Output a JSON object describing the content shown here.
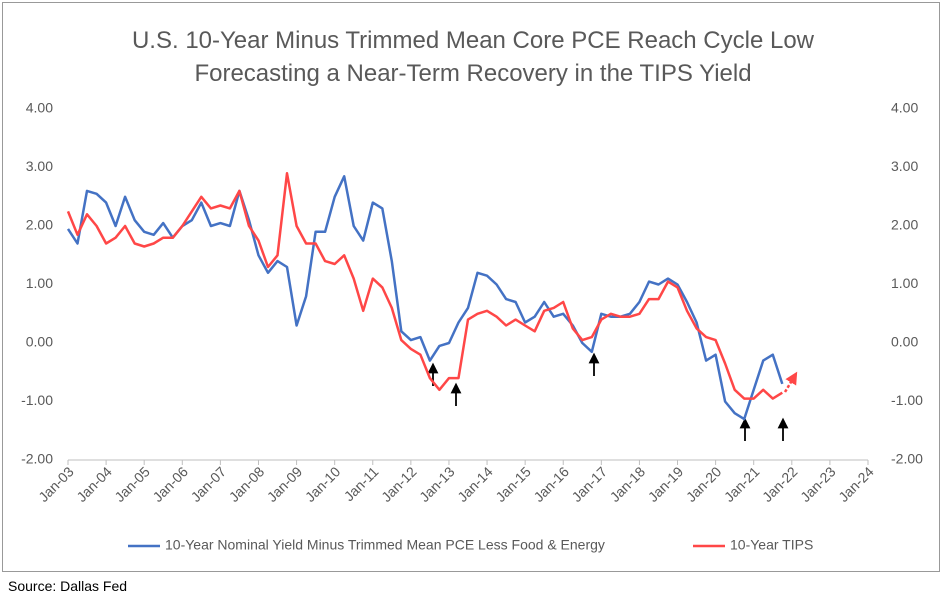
{
  "chart_data": {
    "type": "line",
    "title": "U.S. 10-Year Minus Trimmed Mean Core PCE Reach Cycle Low Forecasting a Near-Term Recovery in the TIPS Yield",
    "source": "Source: Dallas Fed",
    "x": [
      "2003-01",
      "2003-04",
      "2003-07",
      "2003-10",
      "2004-01",
      "2004-04",
      "2004-07",
      "2004-10",
      "2005-01",
      "2005-04",
      "2005-07",
      "2005-10",
      "2006-01",
      "2006-04",
      "2006-07",
      "2006-10",
      "2007-01",
      "2007-04",
      "2007-07",
      "2007-10",
      "2008-01",
      "2008-04",
      "2008-07",
      "2008-10",
      "2009-01",
      "2009-04",
      "2009-07",
      "2009-10",
      "2010-01",
      "2010-04",
      "2010-07",
      "2010-10",
      "2011-01",
      "2011-04",
      "2011-07",
      "2011-10",
      "2012-01",
      "2012-04",
      "2012-07",
      "2012-10",
      "2013-01",
      "2013-04",
      "2013-07",
      "2013-10",
      "2014-01",
      "2014-04",
      "2014-07",
      "2014-10",
      "2015-01",
      "2015-04",
      "2015-07",
      "2015-10",
      "2016-01",
      "2016-04",
      "2016-07",
      "2016-10",
      "2017-01",
      "2017-04",
      "2017-07",
      "2017-10",
      "2018-01",
      "2018-04",
      "2018-07",
      "2018-10",
      "2019-01",
      "2019-04",
      "2019-07",
      "2019-10",
      "2020-01",
      "2020-04",
      "2020-07",
      "2020-10",
      "2021-01",
      "2021-04",
      "2021-07",
      "2021-10"
    ],
    "series": [
      {
        "name": "10-Year Nominal Yield Minus Trimmed Mean PCE Less Food & Energy",
        "color": "#4472c4",
        "values": [
          1.95,
          1.7,
          2.6,
          2.55,
          2.4,
          2.0,
          2.5,
          2.1,
          1.9,
          1.85,
          2.05,
          1.8,
          2.0,
          2.1,
          2.4,
          2.0,
          2.05,
          2.0,
          2.6,
          2.1,
          1.5,
          1.2,
          1.4,
          1.3,
          0.3,
          0.8,
          1.9,
          1.9,
          2.5,
          2.85,
          2.0,
          1.75,
          2.4,
          2.3,
          1.4,
          0.2,
          0.05,
          0.1,
          -0.3,
          -0.05,
          0.0,
          0.35,
          0.6,
          1.2,
          1.15,
          1.0,
          0.75,
          0.7,
          0.35,
          0.45,
          0.7,
          0.45,
          0.5,
          0.3,
          0.0,
          -0.15,
          0.5,
          0.45,
          0.45,
          0.5,
          0.7,
          1.05,
          1.0,
          1.1,
          1.0,
          0.7,
          0.35,
          -0.3,
          -0.2,
          -1.0,
          -1.2,
          -1.3,
          -0.8,
          -0.3,
          -0.2,
          -0.7
        ]
      },
      {
        "name": "10-Year TIPS",
        "color": "#ff4747",
        "axis": "y2",
        "values": [
          2.25,
          1.85,
          2.2,
          2.0,
          1.7,
          1.8,
          2.0,
          1.7,
          1.65,
          1.7,
          1.8,
          1.8,
          2.0,
          2.25,
          2.5,
          2.3,
          2.35,
          2.3,
          2.6,
          2.0,
          1.75,
          1.3,
          1.5,
          2.9,
          2.0,
          1.7,
          1.7,
          1.4,
          1.35,
          1.5,
          1.1,
          0.55,
          1.1,
          0.95,
          0.6,
          0.05,
          -0.1,
          -0.2,
          -0.6,
          -0.8,
          -0.6,
          -0.6,
          0.4,
          0.5,
          0.55,
          0.45,
          0.3,
          0.4,
          0.3,
          0.2,
          0.55,
          0.6,
          0.7,
          0.25,
          0.05,
          0.1,
          0.4,
          0.5,
          0.45,
          0.45,
          0.5,
          0.75,
          0.75,
          1.05,
          0.95,
          0.55,
          0.25,
          0.1,
          0.05,
          -0.35,
          -0.8,
          -0.95,
          -0.95,
          -0.8,
          -0.95,
          -0.85
        ]
      }
    ],
    "xlim": [
      "2003-01",
      "2024-01"
    ],
    "xticks": [
      {
        "value": "2003-01",
        "label": "Jan-03"
      },
      {
        "value": "2004-01",
        "label": "Jan-04"
      },
      {
        "value": "2005-01",
        "label": "Jan-05"
      },
      {
        "value": "2006-01",
        "label": "Jan-06"
      },
      {
        "value": "2007-01",
        "label": "Jan-07"
      },
      {
        "value": "2008-01",
        "label": "Jan-08"
      },
      {
        "value": "2009-01",
        "label": "Jan-09"
      },
      {
        "value": "2010-01",
        "label": "Jan-10"
      },
      {
        "value": "2011-01",
        "label": "Jan-11"
      },
      {
        "value": "2012-01",
        "label": "Jan-12"
      },
      {
        "value": "2013-01",
        "label": "Jan-13"
      },
      {
        "value": "2014-01",
        "label": "Jan-14"
      },
      {
        "value": "2015-01",
        "label": "Jan-15"
      },
      {
        "value": "2016-01",
        "label": "Jan-16"
      },
      {
        "value": "2017-01",
        "label": "Jan-17"
      },
      {
        "value": "2018-01",
        "label": "Jan-18"
      },
      {
        "value": "2019-01",
        "label": "Jan-19"
      },
      {
        "value": "2020-01",
        "label": "Jan-20"
      },
      {
        "value": "2021-01",
        "label": "Jan-21"
      },
      {
        "value": "2022-01",
        "label": "Jan-22"
      },
      {
        "value": "2023-01",
        "label": "Jan-23"
      },
      {
        "value": "2024-01",
        "label": "Jan-24"
      }
    ],
    "ylim": [
      -2,
      4
    ],
    "yticks": [
      {
        "value": 4,
        "label": "4.00"
      },
      {
        "value": 3,
        "label": "3.00"
      },
      {
        "value": 2,
        "label": "2.00"
      },
      {
        "value": 1,
        "label": "1.00"
      },
      {
        "value": 0,
        "label": "0.00"
      },
      {
        "value": -1,
        "label": "-1.00"
      },
      {
        "value": -2,
        "label": "-2.00"
      }
    ],
    "y2lim": [
      -2,
      4
    ],
    "y2ticks": [
      {
        "value": 4,
        "label": "4.00"
      },
      {
        "value": 3,
        "label": "3.00"
      },
      {
        "value": 2,
        "label": "2.00"
      },
      {
        "value": 1,
        "label": "1.00"
      },
      {
        "value": 0,
        "label": "0.00"
      },
      {
        "value": -1,
        "label": "-1.00"
      },
      {
        "value": -2,
        "label": "-2.00"
      }
    ],
    "grid": false,
    "legend": "bottom"
  }
}
